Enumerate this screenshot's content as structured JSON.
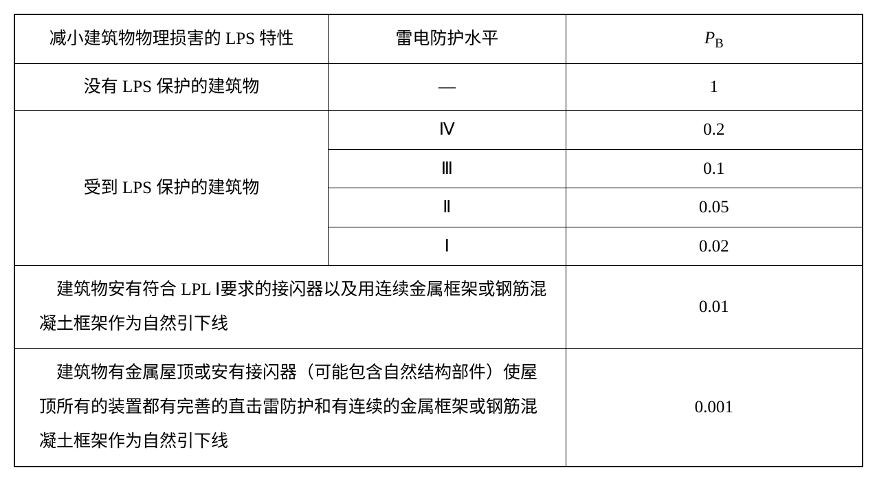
{
  "table": {
    "border_color": "#000000",
    "background_color": "#ffffff",
    "text_color": "#000000",
    "font_size": 25,
    "line_height": 1.9,
    "headers": {
      "col1": "减小建筑物物理损害的 LPS 特性",
      "col2": "雷电防护水平",
      "col3_prefix": "P",
      "col3_subscript": "B"
    },
    "row_no_lps": {
      "label": "没有 LPS 保护的建筑物",
      "level": "—",
      "pb": "1"
    },
    "row_with_lps": {
      "label": "受到 LPS 保护的建筑物",
      "sublevels": [
        {
          "level": "Ⅳ",
          "pb": "0.2"
        },
        {
          "level": "Ⅲ",
          "pb": "0.1"
        },
        {
          "level": "Ⅱ",
          "pb": "0.05"
        },
        {
          "level": "Ⅰ",
          "pb": "0.02"
        }
      ]
    },
    "row_lpl1": {
      "label": "　建筑物安有符合 LPL Ⅰ要求的接闪器以及用连续金属框架或钢筋混凝土框架作为自然引下线",
      "pb": "0.01"
    },
    "row_metal_roof": {
      "label": "　建筑物有金属屋顶或安有接闪器（可能包含自然结构部件）使屋顶所有的装置都有完善的直击雷防护和有连续的金属框架或钢筋混凝土框架作为自然引下线",
      "pb": "0.001"
    }
  }
}
